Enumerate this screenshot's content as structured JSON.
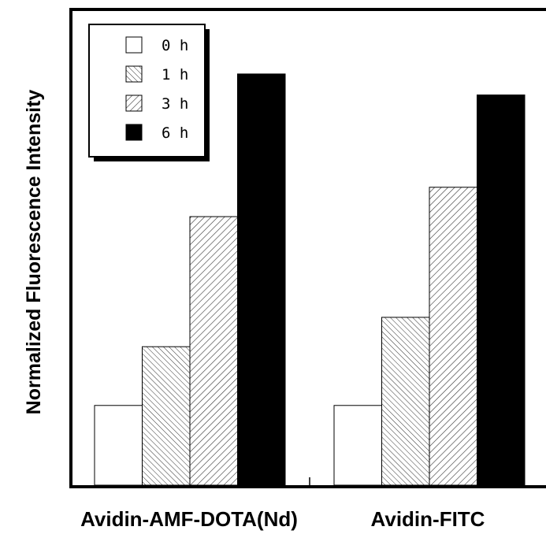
{
  "chart_data": {
    "type": "bar",
    "title": "",
    "xlabel": "",
    "ylabel": "Normalized Fluorescence Intensity",
    "categories": [
      "Avidin-AMF-DOTA(Nd)",
      "Avidin-FITC"
    ],
    "series": [
      {
        "name": "0 h",
        "values": [
          0.19,
          0.19
        ],
        "fill": "white"
      },
      {
        "name": "1 h",
        "values": [
          0.33,
          0.4
        ],
        "fill": "hatch-fine"
      },
      {
        "name": "3 h",
        "values": [
          0.64,
          0.71
        ],
        "fill": "hatch-coarse"
      },
      {
        "name": "6 h",
        "values": [
          0.98,
          0.93
        ],
        "fill": "black"
      }
    ],
    "ylim": [
      0,
      1.13
    ],
    "y_ticks_shown": false,
    "grid": false,
    "legend_position": "top-left"
  }
}
